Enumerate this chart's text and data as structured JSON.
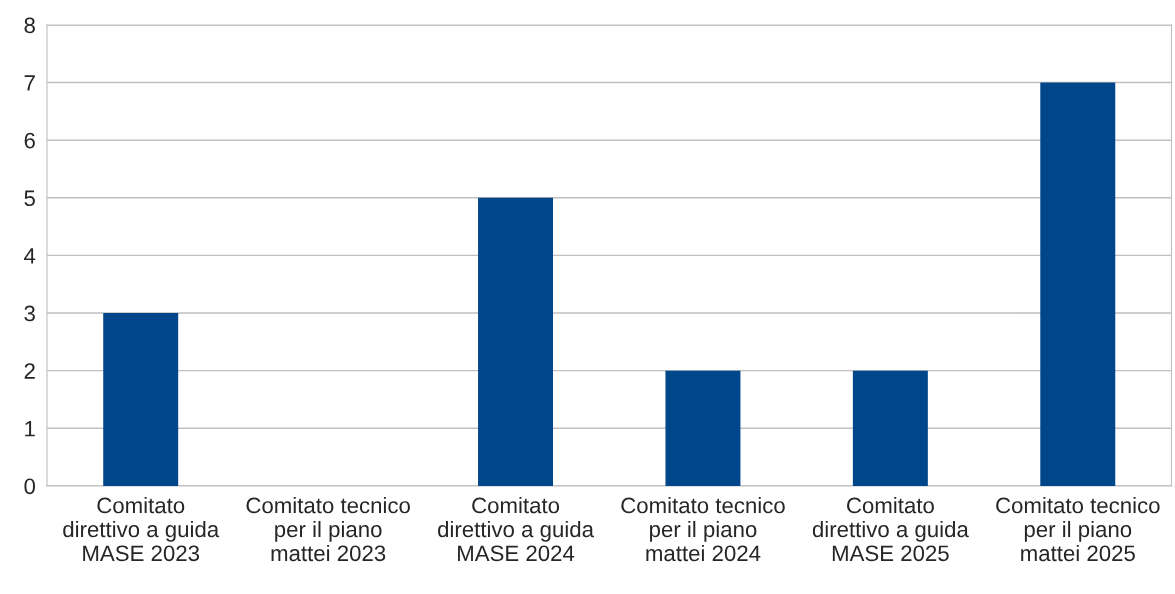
{
  "chart_data": {
    "type": "bar",
    "categories": [
      "Comitato\ndirettivo a guida\nMASE 2023",
      "Comitato tecnico\nper il piano\nmattei 2023",
      "Comitato\ndirettivo a guida\nMASE 2024",
      "Comitato tecnico\nper il piano\nmattei 2024",
      "Comitato\ndirettivo a guida\nMASE 2025",
      "Comitato tecnico\nper il piano\nmattei 2025"
    ],
    "values": [
      3,
      0,
      5,
      2,
      2,
      7
    ],
    "color": "#00468b",
    "ylim": [
      0,
      8
    ],
    "yticks": [
      0,
      1,
      2,
      3,
      4,
      5,
      6,
      7,
      8
    ],
    "grid": "y",
    "legend": false
  }
}
